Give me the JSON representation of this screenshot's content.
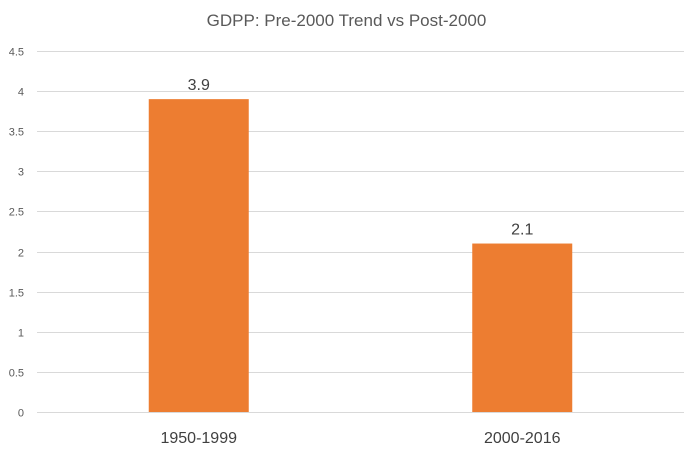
{
  "chart_data": {
    "type": "bar",
    "title": "GDPP: Pre-2000 Trend vs Post-2000",
    "categories": [
      "1950-1999",
      "2000-2016"
    ],
    "values": [
      3.9,
      2.1
    ],
    "data_labels": [
      "3.9",
      "2.1"
    ],
    "xlabel": "",
    "ylabel": "",
    "ylim": [
      0,
      4.5
    ],
    "yticks": [
      "0",
      "0.5",
      "1",
      "1.5",
      "2",
      "2.5",
      "3",
      "3.5",
      "4",
      "4.5"
    ],
    "grid": true,
    "legend": "none",
    "bar_color": "#ED7D31",
    "grid_color": "#D9D9D9"
  }
}
